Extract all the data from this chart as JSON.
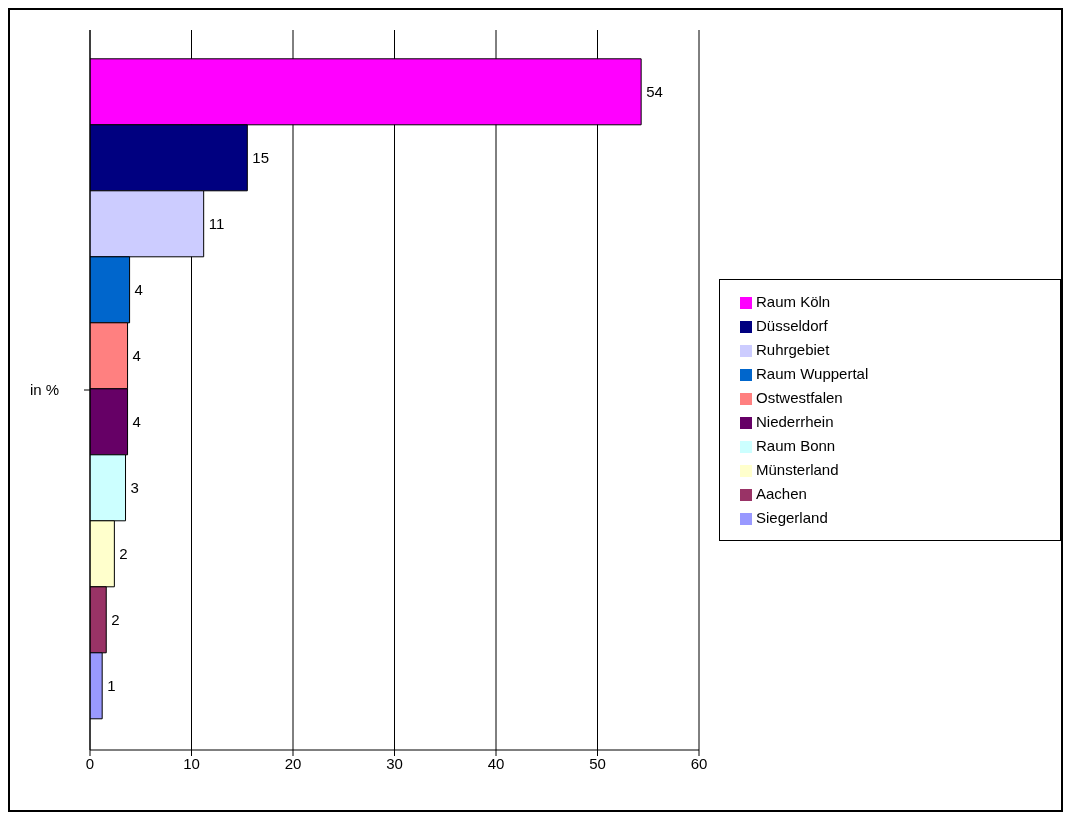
{
  "chart_data": {
    "type": "bar",
    "orientation": "horizontal",
    "ylabel": "in %",
    "categories": [
      null
    ],
    "series": [
      {
        "name": "Raum Köln",
        "color": "#ff00ff",
        "values": [
          54.3
        ],
        "value_labels": [
          "54"
        ]
      },
      {
        "name": "Düsseldorf",
        "color": "#000080",
        "values": [
          15.5
        ],
        "value_labels": [
          "15"
        ]
      },
      {
        "name": "Ruhrgebiet",
        "color": "#ccccff",
        "values": [
          11.2
        ],
        "value_labels": [
          "11"
        ]
      },
      {
        "name": "Raum Wuppertal",
        "color": "#0066cc",
        "values": [
          3.9
        ],
        "value_labels": [
          "4"
        ]
      },
      {
        "name": "Ostwestfalen",
        "color": "#ff8080",
        "values": [
          3.7
        ],
        "value_labels": [
          "4"
        ]
      },
      {
        "name": "Niederrhein",
        "color": "#660066",
        "values": [
          3.7
        ],
        "value_labels": [
          "4"
        ]
      },
      {
        "name": "Raum Bonn",
        "color": "#ccffff",
        "values": [
          3.5
        ],
        "value_labels": [
          "3"
        ]
      },
      {
        "name": "Münsterland",
        "color": "#ffffcc",
        "values": [
          2.4
        ],
        "value_labels": [
          "2"
        ]
      },
      {
        "name": "Aachen",
        "color": "#993366",
        "values": [
          1.6
        ],
        "value_labels": [
          "2"
        ]
      },
      {
        "name": "Siegerland",
        "color": "#9999ff",
        "values": [
          1.2
        ],
        "value_labels": [
          "1"
        ]
      }
    ],
    "xlim": [
      0,
      60
    ],
    "xticks": [
      0,
      10,
      20,
      30,
      40,
      50,
      60
    ],
    "grid": "x",
    "legend": "right"
  }
}
